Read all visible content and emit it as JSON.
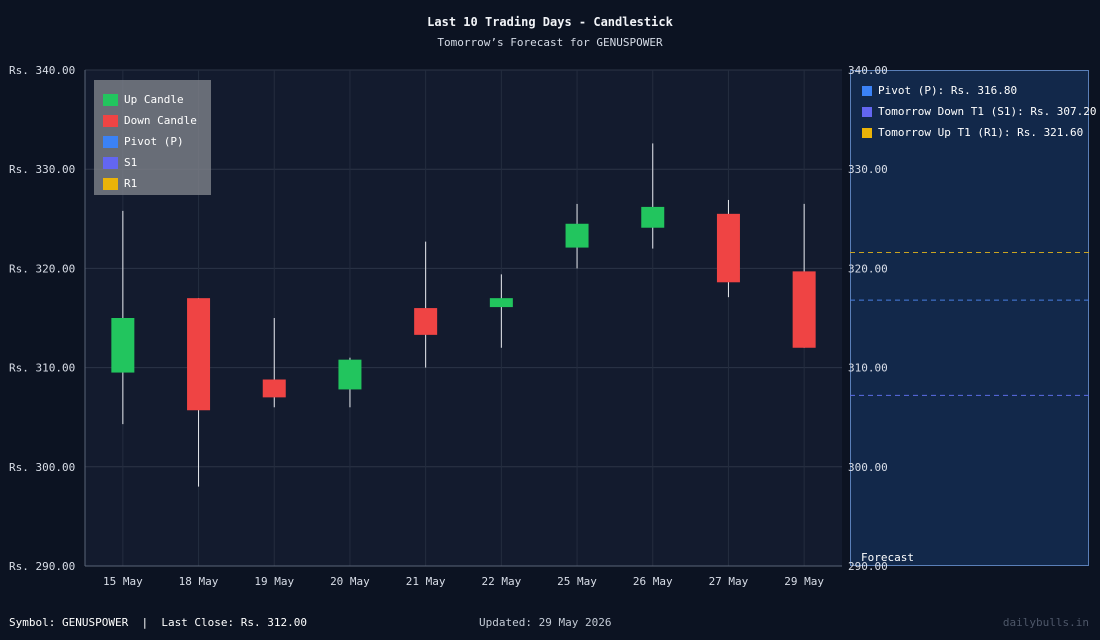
{
  "header": {
    "title": "Last 10 Trading Days - Candlestick",
    "subtitle": "Tomorrow’s Forecast for GENUSPOWER"
  },
  "legend": [
    {
      "label": "Up Candle",
      "color": "#22c55e"
    },
    {
      "label": "Down Candle",
      "color": "#ef4444"
    },
    {
      "label": "Pivot (P)",
      "color": "#3b82f6"
    },
    {
      "label": "S1",
      "color": "#6366f1"
    },
    {
      "label": "R1",
      "color": "#eab308"
    }
  ],
  "forecast": {
    "label": "Forecast",
    "legend": [
      {
        "label": "Pivot (P): Rs. 316.80",
        "color": "#3b82f6"
      },
      {
        "label": "Tomorrow Down T1 (S1): Rs. 307.20",
        "color": "#6366f1"
      },
      {
        "label": "Tomorrow Up T1 (R1): Rs. 321.60",
        "color": "#eab308"
      }
    ]
  },
  "footer": {
    "left": "Symbol: GENUSPOWER  |  Last Close: Rs. 312.00",
    "middle": "Updated: 29 May 2026",
    "right": "dailybulls.in"
  },
  "chart_data": {
    "type": "candlestick",
    "title": "Last 10 Trading Days - Candlestick",
    "subtitle": "Tomorrow’s Forecast for GENUSPOWER",
    "ylim": [
      290,
      340
    ],
    "yticks": [
      290,
      300,
      310,
      320,
      330,
      340
    ],
    "ytick_labels_left": [
      "Rs. 290.00",
      "Rs. 300.00",
      "Rs. 310.00",
      "Rs. 320.00",
      "Rs. 330.00",
      "Rs. 340.00"
    ],
    "ytick_labels_right": [
      "290.00",
      "300.00",
      "310.00",
      "320.00",
      "330.00",
      "340.00"
    ],
    "grid": true,
    "legend_position": "top-left",
    "up_color": "#22c55e",
    "down_color": "#ef4444",
    "candles": [
      {
        "date": "15 May",
        "open": 309.5,
        "high": 325.8,
        "low": 304.3,
        "close": 315.0
      },
      {
        "date": "18 May",
        "open": 317.0,
        "high": 317.0,
        "low": 298.0,
        "close": 305.7
      },
      {
        "date": "19 May",
        "open": 308.8,
        "high": 315.0,
        "low": 306.0,
        "close": 307.0
      },
      {
        "date": "20 May",
        "open": 307.8,
        "high": 311.0,
        "low": 306.0,
        "close": 310.8
      },
      {
        "date": "21 May",
        "open": 316.0,
        "high": 322.7,
        "low": 310.0,
        "close": 313.3
      },
      {
        "date": "22 May",
        "open": 316.1,
        "high": 319.4,
        "low": 312.0,
        "close": 317.0
      },
      {
        "date": "25 May",
        "open": 322.1,
        "high": 326.5,
        "low": 320.0,
        "close": 324.5
      },
      {
        "date": "26 May",
        "open": 324.1,
        "high": 332.6,
        "low": 322.0,
        "close": 326.2
      },
      {
        "date": "27 May",
        "open": 325.5,
        "high": 326.9,
        "low": 317.1,
        "close": 318.6
      },
      {
        "date": "29 May",
        "open": 319.7,
        "high": 326.5,
        "low": 312.0,
        "close": 312.0
      }
    ],
    "forecast_levels": [
      {
        "name": "Pivot (P)",
        "value": 316.8,
        "color": "#3b82f6"
      },
      {
        "name": "S1",
        "value": 307.2,
        "color": "#6366f1"
      },
      {
        "name": "R1",
        "value": 321.6,
        "color": "#eab308"
      }
    ]
  }
}
